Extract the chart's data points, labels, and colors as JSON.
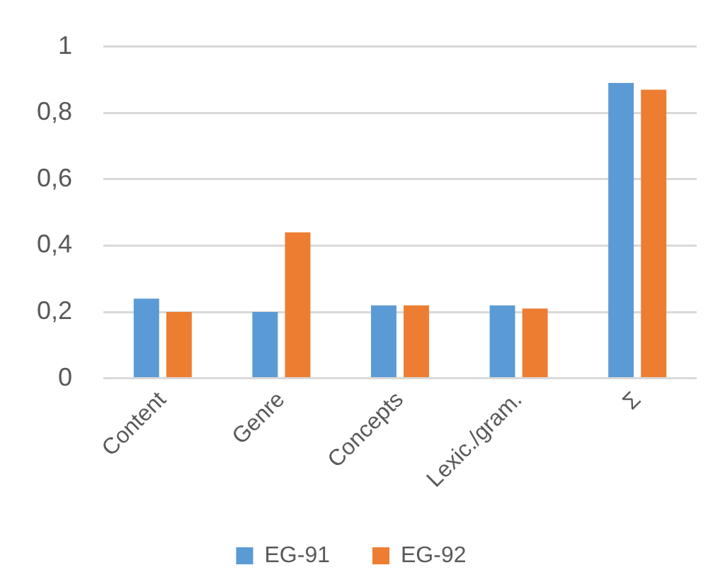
{
  "chart_data": {
    "type": "bar",
    "categories": [
      "Content",
      "Genre",
      "Concepts",
      "Lexic./gram.",
      "Σ"
    ],
    "series": [
      {
        "name": "EG-91",
        "color": "#5b9bd5",
        "values": [
          0.24,
          0.2,
          0.22,
          0.22,
          0.89
        ]
      },
      {
        "name": "EG-92",
        "color": "#ed7d31",
        "values": [
          0.2,
          0.44,
          0.22,
          0.21,
          0.87
        ]
      }
    ],
    "ylim": [
      0,
      1
    ],
    "yticks": [
      0,
      {
        "value": 0.2,
        "label": "0,2"
      },
      {
        "value": 0.4,
        "label": "0,4"
      },
      {
        "value": 0.6,
        "label": "0,6"
      },
      {
        "value": 0.8,
        "label": "0,8"
      },
      1
    ],
    "grid": "y",
    "legend": "bottom"
  }
}
